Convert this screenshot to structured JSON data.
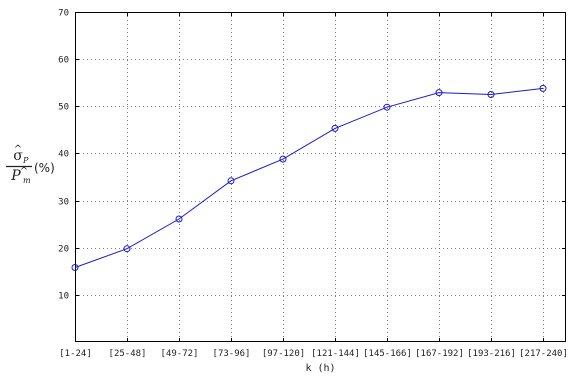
{
  "chart_data": {
    "type": "line",
    "categories": [
      "[1-24]",
      "[25-48]",
      "[49-72]",
      "[73-96]",
      "[97-120]",
      "[121-144]",
      "[145-166]",
      "[167-192]",
      "[193-216]",
      "[217-240]"
    ],
    "series": [
      {
        "values": [
          15.8,
          19.8,
          26.1,
          34.2,
          38.8,
          45.3,
          49.8,
          52.9,
          52.5,
          53.8
        ]
      }
    ],
    "xlabel": "k  (h)",
    "ylabel": {
      "numerator": "σ",
      "numerator_sub": "P",
      "denominator": "P",
      "denominator_sub": "m",
      "unit": "(%)"
    },
    "ylim": [
      0,
      70
    ],
    "yticks": [
      10,
      20,
      30,
      40,
      50,
      60,
      70
    ],
    "grid": true,
    "marker": "circle",
    "line_color": "#1a1ad4"
  }
}
